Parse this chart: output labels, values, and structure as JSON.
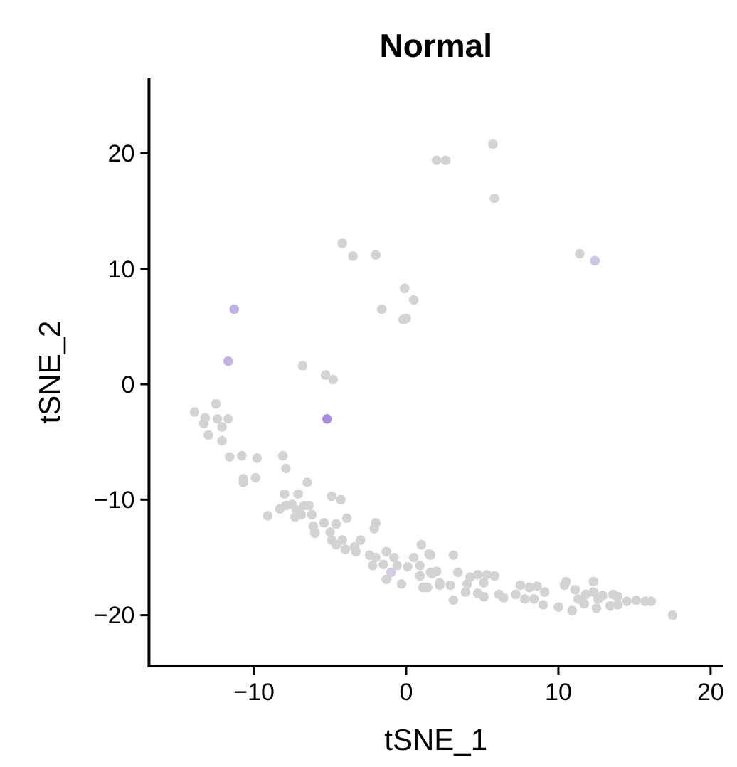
{
  "chart_data": {
    "type": "scatter",
    "title": "Normal",
    "xlabel": "tSNE_1",
    "ylabel": "tSNE_2",
    "xlim": [
      -16.9,
      20.8
    ],
    "ylim": [
      -24.4,
      26.5
    ],
    "xticks": [
      -10,
      0,
      10,
      20
    ],
    "yticks": [
      -20,
      -10,
      0,
      10,
      20
    ],
    "grid": false,
    "marker": "circle",
    "x": [
      2.0,
      2.6,
      5.7,
      5.8,
      -4.2,
      -3.5,
      -2.0,
      -0.1,
      0.5,
      -1.6,
      -0.2,
      0.0,
      -6.8,
      11.4,
      -5.3,
      -4.8,
      -13.9,
      -13.2,
      -13.3,
      -12.5,
      -12.4,
      -11.7,
      -12.1,
      -13.0,
      -12.1,
      -11.6,
      -10.8,
      -9.8,
      -10.7,
      -10.7,
      -9.9,
      -8.1,
      -7.9,
      -6.5,
      -8.0,
      -7.1,
      -9.1,
      -8.3,
      -7.9,
      -7.5,
      -7.2,
      -6.7,
      -6.4,
      -7.3,
      -6.9,
      -6.2,
      -4.9,
      -4.3,
      -6.1,
      -6.0,
      -5.4,
      -5.0,
      -4.6,
      -3.9,
      -4.9,
      -4.6,
      -4.2,
      -4.0,
      -3.4,
      -3.0,
      -3.3,
      -2.0,
      -2.1,
      -2.4,
      -2.0,
      -1.3,
      -2.2,
      -1.5,
      -0.8,
      -0.6,
      -1.3,
      -0.3,
      0.1,
      0.5,
      1.0,
      1.5,
      0.9,
      0.9,
      1.6,
      1.1,
      1.4,
      2.2,
      1.6,
      3.1,
      2.0,
      1.7,
      2.2,
      2.9,
      3.4,
      4.2,
      4.0,
      4.7,
      5.3,
      5.8,
      5.1,
      3.9,
      3.1,
      4.7,
      5.1,
      6.1,
      6.4,
      7.2,
      7.5,
      8.1,
      8.6,
      7.8,
      8.4,
      9.1,
      9.0,
      10.0,
      10.5,
      10.4,
      11.1,
      11.3,
      10.9,
      11.7,
      11.8,
      12.3,
      12.3,
      12.6,
      12.5,
      12.9,
      13.4,
      13.6,
      13.9,
      13.9,
      14.5,
      15.1,
      15.7,
      16.1,
      17.5,
      -1.0,
      -11.3,
      -11.7,
      12.4,
      -5.2
    ],
    "values": [
      19.4,
      19.4,
      20.8,
      16.1,
      12.2,
      11.1,
      11.2,
      8.3,
      7.3,
      6.5,
      5.6,
      5.7,
      1.6,
      11.3,
      0.8,
      0.4,
      -2.4,
      -2.9,
      -3.4,
      -1.7,
      -3.0,
      -3.0,
      -3.7,
      -4.4,
      -4.9,
      -6.3,
      -6.2,
      -6.4,
      -8.5,
      -8.2,
      -8.1,
      -6.2,
      -7.3,
      -8.5,
      -9.5,
      -9.5,
      -11.4,
      -10.8,
      -10.5,
      -10.4,
      -10.9,
      -10.5,
      -10.5,
      -11.5,
      -11.3,
      -11.3,
      -9.7,
      -10.0,
      -12.3,
      -12.9,
      -12.0,
      -12.8,
      -12.1,
      -11.6,
      -13.5,
      -13.9,
      -13.5,
      -14.3,
      -14.1,
      -13.5,
      -14.5,
      -12.0,
      -12.5,
      -14.8,
      -15.0,
      -14.5,
      -15.7,
      -15.6,
      -15.0,
      -15.7,
      -16.9,
      -17.3,
      -15.8,
      -15.0,
      -13.9,
      -14.7,
      -15.7,
      -16.6,
      -16.3,
      -17.6,
      -17.6,
      -17.4,
      -14.8,
      -14.8,
      -16.2,
      -16.4,
      -17.2,
      -17.4,
      -16.3,
      -16.7,
      -17.3,
      -16.5,
      -16.5,
      -16.6,
      -17.2,
      -18.0,
      -18.7,
      -18.1,
      -18.4,
      -18.2,
      -18.5,
      -18.2,
      -17.4,
      -17.6,
      -17.5,
      -18.6,
      -18.6,
      -18.0,
      -19.1,
      -19.3,
      -17.1,
      -17.4,
      -17.8,
      -18.6,
      -19.6,
      -19.0,
      -18.2,
      -17.1,
      -18.0,
      -18.6,
      -19.4,
      -18.3,
      -19.2,
      -18.2,
      -18.4,
      -19.1,
      -18.8,
      -18.7,
      -18.8,
      -18.8,
      -20.0,
      -16.3,
      6.5,
      2.0,
      10.7,
      -3.0
    ],
    "colors": [
      "#d3d3d3",
      "#d3d3d3",
      "#d3d3d3",
      "#d3d3d3",
      "#d3d3d3",
      "#d3d3d3",
      "#d3d3d3",
      "#d3d3d3",
      "#d3d3d3",
      "#d3d3d3",
      "#d3d3d3",
      "#d3d3d3",
      "#d3d3d3",
      "#d3d3d3",
      "#d3d3d3",
      "#d3d3d3",
      "#d3d3d3",
      "#d3d3d3",
      "#d3d3d3",
      "#d3d3d3",
      "#d3d3d3",
      "#d3d3d3",
      "#d3d3d3",
      "#d3d3d3",
      "#d3d3d3",
      "#d3d3d3",
      "#d3d3d3",
      "#d3d3d3",
      "#d3d3d3",
      "#d3d3d3",
      "#d3d3d3",
      "#d3d3d3",
      "#d3d3d3",
      "#d3d3d3",
      "#d3d3d3",
      "#d3d3d3",
      "#d3d3d3",
      "#d3d3d3",
      "#d3d3d3",
      "#d3d3d3",
      "#d3d3d3",
      "#d3d3d3",
      "#d3d3d3",
      "#d3d3d3",
      "#d3d3d3",
      "#d3d3d3",
      "#d3d3d3",
      "#d3d3d3",
      "#d3d3d3",
      "#d3d3d3",
      "#d3d3d3",
      "#d3d3d3",
      "#d3d3d3",
      "#d3d3d3",
      "#d3d3d3",
      "#d3d3d3",
      "#d3d3d3",
      "#d3d3d3",
      "#d3d3d3",
      "#d3d3d3",
      "#d3d3d3",
      "#d3d3d3",
      "#d3d3d3",
      "#d3d3d3",
      "#d3d3d3",
      "#d3d3d3",
      "#d3d3d3",
      "#d3d3d3",
      "#d3d3d3",
      "#d3d3d3",
      "#d3d3d3",
      "#d3d3d3",
      "#d3d3d3",
      "#d3d3d3",
      "#d3d3d3",
      "#d3d3d3",
      "#d3d3d3",
      "#d3d3d3",
      "#d3d3d3",
      "#d3d3d3",
      "#d3d3d3",
      "#d3d3d3",
      "#d3d3d3",
      "#d3d3d3",
      "#d3d3d3",
      "#d3d3d3",
      "#d3d3d3",
      "#d3d3d3",
      "#d3d3d3",
      "#d3d3d3",
      "#d3d3d3",
      "#d3d3d3",
      "#d3d3d3",
      "#d3d3d3",
      "#d3d3d3",
      "#d3d3d3",
      "#d3d3d3",
      "#d3d3d3",
      "#d3d3d3",
      "#d3d3d3",
      "#d3d3d3",
      "#d3d3d3",
      "#d3d3d3",
      "#d3d3d3",
      "#d3d3d3",
      "#d3d3d3",
      "#d3d3d3",
      "#d3d3d3",
      "#d3d3d3",
      "#d3d3d3",
      "#d3d3d3",
      "#d3d3d3",
      "#d3d3d3",
      "#d3d3d3",
      "#d3d3d3",
      "#d3d3d3",
      "#d3d3d3",
      "#d3d3d3",
      "#d3d3d3",
      "#d3d3d3",
      "#d3d3d3",
      "#d3d3d3",
      "#d3d3d3",
      "#d3d3d3",
      "#d3d3d3",
      "#d3d3d3",
      "#d3d3d3",
      "#d3d3d3",
      "#d3d3d3",
      "#d3d3d3",
      "#d3d3d3",
      "#d4cce4",
      "#c0b0e4",
      "#c0b0e4",
      "#cec6e2",
      "#a98be8"
    ]
  }
}
